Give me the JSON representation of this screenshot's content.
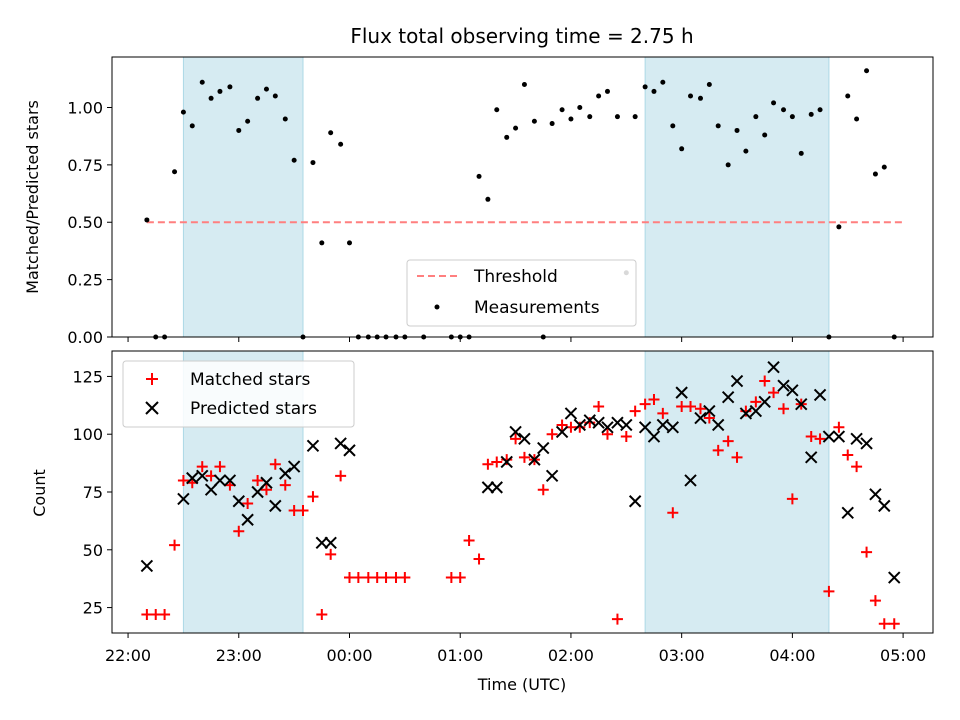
{
  "figure": {
    "title": "Flux total observing time = 2.75 h",
    "xlabel": "Time (UTC)",
    "x_ticks": [
      "22:00",
      "23:00",
      "00:00",
      "01:00",
      "02:00",
      "03:00",
      "04:00",
      "05:00"
    ],
    "x_tick_hours": [
      22,
      23,
      24,
      25,
      26,
      27,
      28,
      29
    ],
    "xlim_hours": [
      21.855,
      29.27
    ],
    "shaded_intervals_hours": [
      [
        22.5,
        23.58
      ],
      [
        26.67,
        28.33
      ]
    ],
    "colors": {
      "shade": "#add8e6",
      "threshold": "#ff7f7f",
      "matched": "#ff0000",
      "predicted": "#000000"
    }
  },
  "chart_data": [
    {
      "type": "scatter",
      "panel": "top",
      "ylabel": "Matched/Predicted stars",
      "ylim": [
        0,
        1.22
      ],
      "y_ticks": [
        "0.00",
        "0.25",
        "0.50",
        "0.75",
        "1.00"
      ],
      "y_tick_values": [
        0,
        0.25,
        0.5,
        0.75,
        1.0
      ],
      "legend_position": "lower center",
      "threshold": {
        "name": "Threshold",
        "value": 0.5,
        "x_range_hours": [
          22.17,
          29.0
        ]
      },
      "series": [
        {
          "name": "Measurements",
          "x_hours": [
            22.17,
            22.25,
            22.33,
            22.42,
            22.5,
            22.58,
            22.67,
            22.75,
            22.83,
            22.92,
            23.0,
            23.08,
            23.17,
            23.25,
            23.33,
            23.42,
            23.5,
            23.58,
            23.67,
            23.75,
            23.83,
            23.92,
            24.0,
            24.08,
            24.17,
            24.25,
            24.33,
            24.42,
            24.5,
            24.67,
            24.92,
            25.0,
            25.08,
            25.17,
            25.25,
            25.33,
            25.42,
            25.5,
            25.58,
            25.67,
            25.75,
            25.83,
            25.92,
            26.0,
            26.08,
            26.17,
            26.25,
            26.33,
            26.42,
            26.5,
            26.58,
            26.67,
            26.75,
            26.83,
            26.92,
            27.0,
            27.08,
            27.17,
            27.25,
            27.33,
            27.42,
            27.5,
            27.58,
            27.67,
            27.75,
            27.83,
            27.92,
            28.0,
            28.08,
            28.17,
            28.25,
            28.33,
            28.42,
            28.5,
            28.58,
            28.67,
            28.75,
            28.83,
            28.92
          ],
          "values": [
            0.51,
            0.0,
            0.0,
            0.72,
            0.98,
            0.92,
            1.11,
            1.04,
            1.07,
            1.09,
            0.9,
            0.94,
            1.04,
            1.08,
            1.05,
            0.95,
            0.77,
            0.0,
            0.76,
            0.41,
            0.89,
            0.84,
            0.41,
            0.0,
            0.0,
            0.0,
            0.0,
            0.0,
            0.0,
            0.0,
            0.0,
            0.0,
            0.0,
            0.7,
            0.6,
            0.99,
            0.87,
            0.91,
            1.1,
            0.94,
            0.0,
            0.93,
            0.99,
            0.95,
            1.0,
            0.96,
            1.05,
            1.07,
            0.96,
            0.28,
            0.96,
            1.09,
            1.07,
            1.11,
            0.92,
            0.82,
            1.05,
            1.04,
            1.1,
            0.92,
            0.75,
            0.9,
            0.81,
            0.96,
            0.88,
            1.02,
            0.99,
            0.96,
            0.8,
            0.97,
            0.99,
            0.0,
            0.48,
            1.05,
            0.95,
            1.16,
            0.71,
            0.74,
            0.0
          ]
        }
      ]
    },
    {
      "type": "scatter",
      "panel": "bottom",
      "ylabel": "Count",
      "ylim": [
        14,
        136
      ],
      "y_ticks": [
        "25",
        "50",
        "75",
        "100",
        "125"
      ],
      "y_tick_values": [
        25,
        50,
        75,
        100,
        125
      ],
      "legend_position": "upper left",
      "series": [
        {
          "name": "Matched stars",
          "marker": "+",
          "x_hours": [
            22.17,
            22.25,
            22.33,
            22.42,
            22.5,
            22.58,
            22.67,
            22.75,
            22.83,
            22.92,
            23.0,
            23.08,
            23.17,
            23.25,
            23.33,
            23.42,
            23.5,
            23.58,
            23.67,
            23.75,
            23.83,
            23.92,
            24.0,
            24.08,
            24.17,
            24.25,
            24.33,
            24.42,
            24.5,
            24.92,
            25.0,
            25.08,
            25.17,
            25.25,
            25.33,
            25.42,
            25.5,
            25.58,
            25.67,
            25.75,
            25.83,
            25.92,
            26.0,
            26.08,
            26.17,
            26.25,
            26.33,
            26.42,
            26.5,
            26.58,
            26.67,
            26.75,
            26.83,
            26.92,
            27.0,
            27.08,
            27.17,
            27.25,
            27.33,
            27.42,
            27.5,
            27.58,
            27.67,
            27.75,
            27.83,
            27.92,
            28.0,
            28.08,
            28.17,
            28.25,
            28.33,
            28.42,
            28.5,
            28.58,
            28.67,
            28.75,
            28.83,
            28.92
          ],
          "values": [
            22,
            22,
            22,
            52,
            80,
            79,
            86,
            82,
            86,
            78,
            58,
            70,
            80,
            76,
            87,
            78,
            67,
            67,
            73,
            22,
            48,
            82,
            38,
            38,
            38,
            38,
            38,
            38,
            38,
            38,
            38,
            54,
            46,
            87,
            88,
            89,
            98,
            90,
            89,
            76,
            100,
            104,
            103,
            103,
            105,
            112,
            100,
            20,
            99,
            110,
            113,
            115,
            109,
            66,
            112,
            112,
            111,
            107,
            93,
            97,
            90,
            110,
            114,
            123,
            118,
            111,
            72,
            113,
            99,
            98,
            32,
            103,
            91,
            86,
            49,
            28,
            18,
            18
          ],
          "x_hours_note": ""
        },
        {
          "name": "Predicted stars",
          "marker": "x",
          "x_hours": [
            22.17,
            22.5,
            22.58,
            22.67,
            22.75,
            22.83,
            22.92,
            23.0,
            23.08,
            23.17,
            23.25,
            23.33,
            23.42,
            23.5,
            23.67,
            23.75,
            23.83,
            23.92,
            24.0,
            25.25,
            25.33,
            25.42,
            25.5,
            25.58,
            25.67,
            25.75,
            25.83,
            25.92,
            26.0,
            26.08,
            26.17,
            26.25,
            26.33,
            26.42,
            26.5,
            26.58,
            26.67,
            26.75,
            26.83,
            26.92,
            27.0,
            27.08,
            27.17,
            27.25,
            27.33,
            27.42,
            27.5,
            27.58,
            27.67,
            27.75,
            27.83,
            27.92,
            28.0,
            28.08,
            28.17,
            28.25,
            28.33,
            28.42,
            28.5,
            28.58,
            28.67,
            28.75,
            28.83,
            28.92
          ],
          "values": [
            43,
            72,
            81,
            82,
            76,
            80,
            80,
            71,
            63,
            75,
            79,
            69,
            83,
            86,
            95,
            53,
            53,
            96,
            93,
            77,
            77,
            88,
            101,
            98,
            89,
            94,
            82,
            101,
            109,
            104,
            106,
            105,
            103,
            105,
            104,
            71,
            103,
            99,
            104,
            103,
            118,
            80,
            107,
            110,
            104,
            116,
            123,
            109,
            110,
            114,
            129,
            121,
            119,
            113,
            90,
            117,
            99,
            99,
            66,
            98,
            96,
            74,
            69,
            38
          ]
        }
      ]
    }
  ]
}
